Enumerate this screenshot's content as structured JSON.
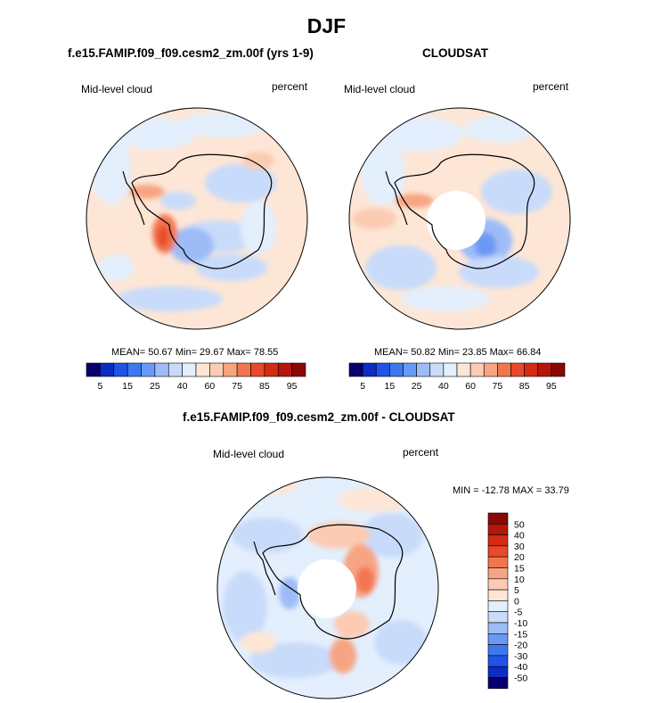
{
  "figure": {
    "title": "DJF",
    "panels": [
      {
        "title": "f.e15.FAMIP.f09_f09.cesm2_zm.00f (yrs 1-9)",
        "variable_label": "Mid-level cloud",
        "units_label": "percent",
        "stats_text": "MEAN=  50.67  Min=  29.67  Max=  78.55",
        "mean": 50.67,
        "min": 29.67,
        "max": 78.55,
        "has_pole_hole": false
      },
      {
        "title": "CLOUDSAT",
        "variable_label": "Mid-level cloud",
        "units_label": "percent",
        "stats_text": "MEAN=  50.82  Min=  23.85  Max=  66.84",
        "mean": 50.82,
        "min": 23.85,
        "max": 66.84,
        "has_pole_hole": true
      },
      {
        "title": "f.e15.FAMIP.f09_f09.cesm2_zm.00f - CLOUDSAT",
        "variable_label": "Mid-level cloud",
        "units_label": "percent",
        "stats_text": "MIN = -12.78 MAX =  33.79",
        "min": -12.78,
        "max": 33.79,
        "has_pole_hole": true
      }
    ]
  },
  "chart_data": [
    {
      "type": "heatmap",
      "projection": "south-polar-stereographic",
      "title": "f.e15.FAMIP.f09_f09.cesm2_zm.00f (yrs 1-9)",
      "colorbar": {
        "orientation": "horizontal",
        "colors": [
          "#08006e",
          "#0c2cc4",
          "#1f54e6",
          "#3d78f0",
          "#6a99f5",
          "#9dbcf7",
          "#c8dbfa",
          "#e3effd",
          "#fde6d6",
          "#fbcbb2",
          "#f7a482",
          "#f2754f",
          "#e8492b",
          "#d52a14",
          "#b5160b",
          "#8a0703"
        ],
        "tick_labels": [
          "5",
          "15",
          "25",
          "40",
          "60",
          "75",
          "85",
          "95"
        ]
      }
    },
    {
      "type": "heatmap",
      "projection": "south-polar-stereographic",
      "title": "CLOUDSAT",
      "colorbar": {
        "orientation": "horizontal",
        "colors": [
          "#08006e",
          "#0c2cc4",
          "#1f54e6",
          "#3d78f0",
          "#6a99f5",
          "#9dbcf7",
          "#c8dbfa",
          "#e3effd",
          "#fde6d6",
          "#fbcbb2",
          "#f7a482",
          "#f2754f",
          "#e8492b",
          "#d52a14",
          "#b5160b",
          "#8a0703"
        ],
        "tick_labels": [
          "5",
          "15",
          "25",
          "40",
          "60",
          "75",
          "85",
          "95"
        ]
      }
    },
    {
      "type": "heatmap",
      "projection": "south-polar-stereographic",
      "title": "f.e15.FAMIP.f09_f09.cesm2_zm.00f - CLOUDSAT",
      "colorbar": {
        "orientation": "vertical",
        "colors": [
          "#08006e",
          "#0c2cc4",
          "#1f54e6",
          "#3d78f0",
          "#6a99f5",
          "#9dbcf7",
          "#c8dbfa",
          "#e3effd",
          "#fde6d6",
          "#fbcbb2",
          "#f7a482",
          "#f2754f",
          "#e8492b",
          "#d52a14",
          "#b5160b",
          "#8a0703"
        ],
        "tick_labels": [
          "50",
          "40",
          "30",
          "20",
          "15",
          "10",
          "5",
          "0",
          "-5",
          "-10",
          "-15",
          "-20",
          "-30",
          "-40",
          "-50"
        ]
      }
    }
  ]
}
